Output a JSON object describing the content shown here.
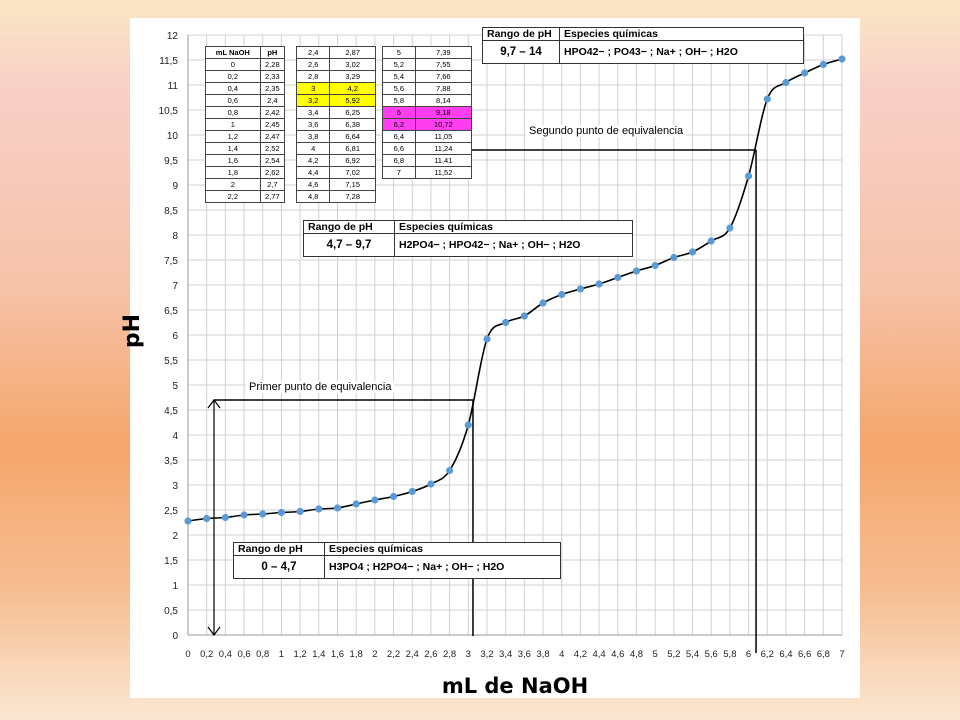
{
  "chart_data": {
    "type": "scatter",
    "xlabel": "mL de NaOH",
    "ylabel": "pH",
    "xlim": [
      0,
      7
    ],
    "ylim": [
      0,
      12
    ],
    "x_ticks": [
      "0",
      "0,2",
      "0,4",
      "0,6",
      "0,8",
      "1",
      "1,2",
      "1,4",
      "1,6",
      "1,8",
      "2",
      "2,2",
      "2,4",
      "2,6",
      "2,8",
      "3",
      "3,2",
      "3,4",
      "3,6",
      "3,8",
      "4",
      "4,2",
      "4,4",
      "4,6",
      "4,8",
      "5",
      "5,2",
      "5,4",
      "5,6",
      "5,8",
      "6",
      "6,2",
      "6,4",
      "6,6",
      "6,8",
      "7"
    ],
    "y_ticks": [
      "0",
      "0,5",
      "1",
      "1,5",
      "2",
      "2,5",
      "3",
      "3,5",
      "4",
      "4,5",
      "5",
      "5,5",
      "6",
      "6,5",
      "7",
      "7,5",
      "8",
      "8,5",
      "9",
      "9,5",
      "10",
      "10,5",
      "11",
      "11,5",
      "12"
    ],
    "grid": true,
    "series": [
      {
        "x": [
          0,
          0.2,
          0.4,
          0.6,
          0.8,
          1,
          1.2,
          1.4,
          1.6,
          1.8,
          2,
          2.2,
          2.4,
          2.6,
          2.8,
          3,
          3.2,
          3.4,
          3.6,
          3.8,
          4,
          4.2,
          4.4,
          4.6,
          4.8,
          5,
          5.2,
          5.4,
          5.6,
          5.8,
          6,
          6.2,
          6.4,
          6.6,
          6.8,
          7
        ],
        "y": [
          2.28,
          2.33,
          2.35,
          2.4,
          2.42,
          2.45,
          2.47,
          2.52,
          2.54,
          2.62,
          2.7,
          2.77,
          2.87,
          3.02,
          3.29,
          4.2,
          5.92,
          6.25,
          6.38,
          6.64,
          6.81,
          6.92,
          7.02,
          7.15,
          7.28,
          7.39,
          7.55,
          7.66,
          7.88,
          8.14,
          9.18,
          10.72,
          11.05,
          11.24,
          11.41,
          11.52
        ]
      }
    ],
    "equivalence_points": [
      {
        "label": "Primer punto de equivalencia",
        "x": 3.05,
        "y": 4.7
      },
      {
        "label": "Segundo punto de equivalencia",
        "x": 6.08,
        "y": 9.7
      }
    ],
    "tables": [
      {
        "headers": [
          "mL NaOH",
          "pH"
        ],
        "rows": [
          [
            "0",
            "2,28"
          ],
          [
            "0,2",
            "2,33"
          ],
          [
            "0,4",
            "2,35"
          ],
          [
            "0,6",
            "2,4"
          ],
          [
            "0,8",
            "2,42"
          ],
          [
            "1",
            "2,45"
          ],
          [
            "1,2",
            "2,47"
          ],
          [
            "1,4",
            "2,52"
          ],
          [
            "1,6",
            "2,54"
          ],
          [
            "1,8",
            "2,62"
          ],
          [
            "2",
            "2,7"
          ],
          [
            "2,2",
            "2,77"
          ]
        ]
      },
      {
        "rows": [
          [
            "2,4",
            "2,87"
          ],
          [
            "2,6",
            "3,02"
          ],
          [
            "2,8",
            "3,29"
          ],
          [
            "3",
            "4,2"
          ],
          [
            "3,2",
            "5,92"
          ],
          [
            "3,4",
            "6,25"
          ],
          [
            "3,6",
            "6,38"
          ],
          [
            "3,8",
            "6,64"
          ],
          [
            "4",
            "6,81"
          ],
          [
            "4,2",
            "6,92"
          ],
          [
            "4,4",
            "7,02"
          ],
          [
            "4,6",
            "7,15"
          ],
          [
            "4,8",
            "7,28"
          ]
        ],
        "highlight_rows": [
          3,
          4
        ],
        "highlight_color": "#ffff00"
      },
      {
        "rows": [
          [
            "5",
            "7,39"
          ],
          [
            "5,2",
            "7,55"
          ],
          [
            "5,4",
            "7,66"
          ],
          [
            "5,6",
            "7,88"
          ],
          [
            "5,8",
            "8,14"
          ],
          [
            "6",
            "9,18"
          ],
          [
            "6,2",
            "10,72"
          ],
          [
            "6,4",
            "11,05"
          ],
          [
            "6,6",
            "11,24"
          ],
          [
            "6,8",
            "11,41"
          ],
          [
            "7",
            "11,52"
          ]
        ],
        "highlight_rows": [
          5,
          6
        ],
        "highlight_color": "#ff3ef0"
      }
    ],
    "species_boxes": [
      {
        "range_header": "Rango de pH",
        "species_header": "Especies químicas",
        "range": "0 – 4,7",
        "species": "H3PO4 ; H2PO4− ; Na+ ; OH− ; H2O"
      },
      {
        "range_header": "Rango de pH",
        "species_header": "Especies químicas",
        "range": "4,7 – 9,7",
        "species": "H2PO4− ; HPO42− ; Na+ ; OH− ; H2O"
      },
      {
        "range_header": "Rango de pH",
        "species_header": "Especies químicas",
        "range": "9,7 – 14",
        "species": "HPO42− ; PO43− ; Na+ ; OH− ; H2O"
      }
    ],
    "colors": {
      "marker": "#5b9bd5",
      "curve": "#000000",
      "grid": "#d0d0d0"
    }
  }
}
